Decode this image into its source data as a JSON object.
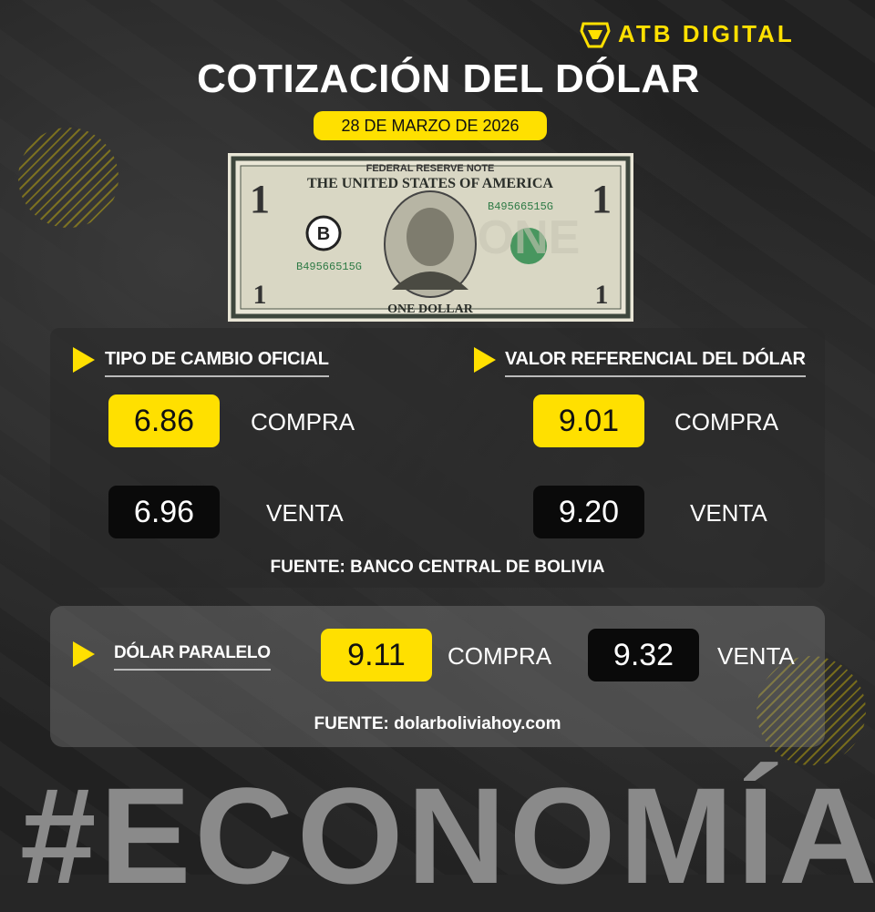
{
  "brand": {
    "name": "ATB DIGITAL",
    "color": "#FFE000"
  },
  "title": "COTIZACIÓN DEL DÓLAR",
  "date": "28 DE MARZO DE 2026",
  "bill": {
    "top": "FEDERAL RESERVE NOTE",
    "country": "THE UNITED STATES OF AMERICA",
    "serial": "B49566515G",
    "bottom": "ONE DOLLAR",
    "denomination": "1"
  },
  "oficial": {
    "heading": "TIPO DE CAMBIO OFICIAL",
    "compra": "6.86",
    "venta": "6.96",
    "compra_label": "COMPRA",
    "venta_label": "VENTA"
  },
  "referencial": {
    "heading": "VALOR REFERENCIAL DEL DÓLAR",
    "compra": "9.01",
    "venta": "9.20",
    "compra_label": "COMPRA",
    "venta_label": "VENTA"
  },
  "fuente_bcb": "FUENTE: BANCO CENTRAL DE BOLIVIA",
  "paralelo": {
    "heading": "DÓLAR PARALELO",
    "compra": "9.11",
    "venta": "9.32",
    "compra_label": "COMPRA",
    "venta_label": "VENTA"
  },
  "fuente_paralelo": "FUENTE: dolarboliviahoy.com",
  "hashtag": "#ECONOMÍA"
}
